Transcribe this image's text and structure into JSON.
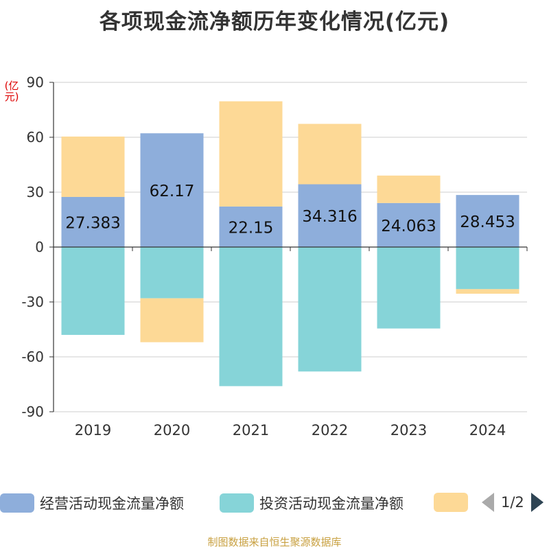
{
  "chart_data": {
    "type": "bar",
    "stacked": true,
    "title": "各项现金流净额历年变化情况(亿元)",
    "ylabel": "(亿元)",
    "xlabel": "",
    "categories": [
      "2019",
      "2020",
      "2021",
      "2022",
      "2023",
      "2024"
    ],
    "ylim": [
      -90,
      90
    ],
    "yticks": [
      90,
      60,
      30,
      0,
      -30,
      -60,
      -90
    ],
    "grid": true,
    "series": [
      {
        "name": "经营活动现金流量净额",
        "color": "#8eaedb",
        "values": [
          27.383,
          62.17,
          22.15,
          34.316,
          24.063,
          28.453
        ],
        "labels": [
          "27.383",
          "62.17",
          "22.15",
          "34.316",
          "24.063",
          "28.453"
        ]
      },
      {
        "name": "投资活动现金流量净额",
        "color": "#86d4d8",
        "values": [
          -48,
          -28,
          -76,
          -68,
          -44.5,
          -23
        ]
      },
      {
        "name": "",
        "color": "#fdd996",
        "values": [
          33,
          -24,
          57.5,
          33,
          15,
          -2.5
        ]
      }
    ],
    "legend": {
      "position": "bottom",
      "page": "1/2"
    }
  },
  "footer": "制图数据来自恒生聚源数据库"
}
